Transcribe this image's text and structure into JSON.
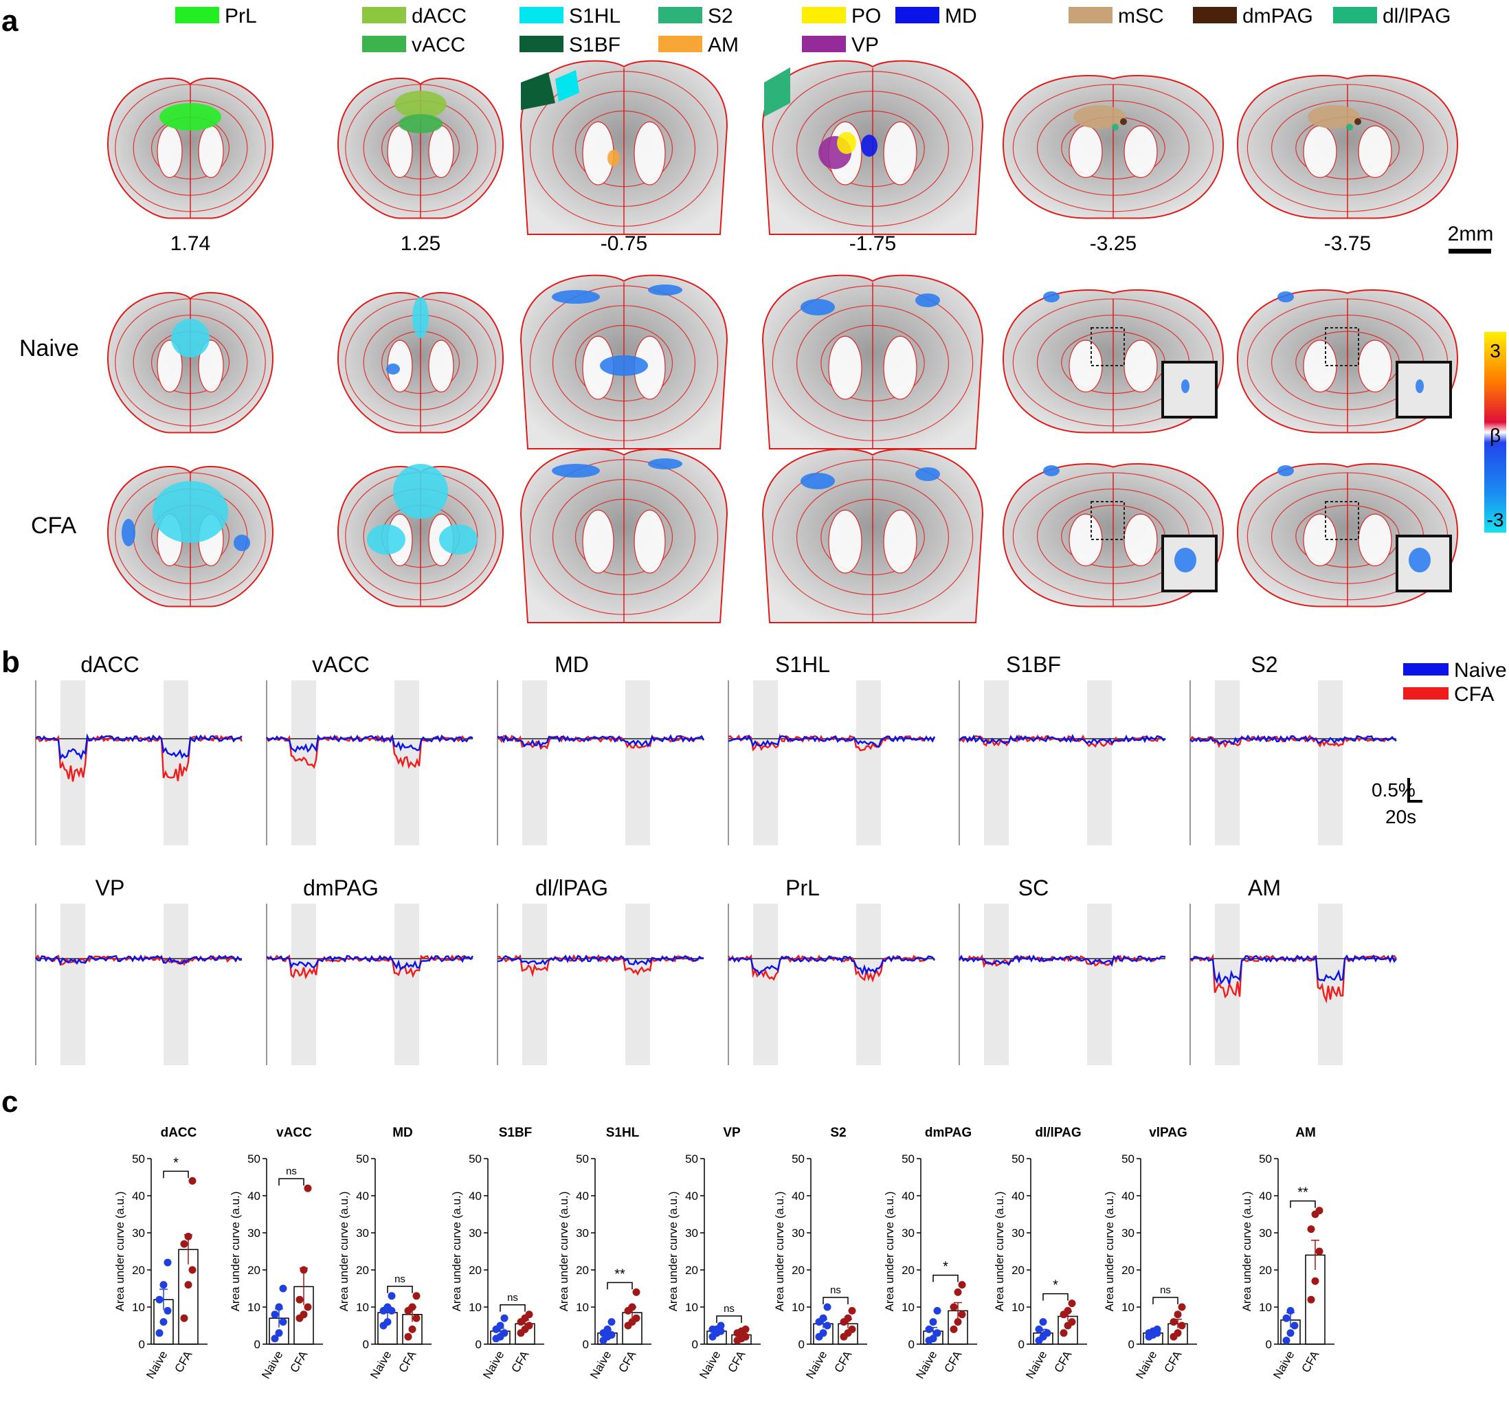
{
  "panel_a": {
    "letter": "a",
    "legend": [
      {
        "label": "PrL",
        "color": "#22ee22"
      },
      {
        "label": "dACC",
        "color": "#8dc63f"
      },
      {
        "label": "vACC",
        "color": "#3cb44b"
      },
      {
        "label": "S1HL",
        "color": "#00e5ee"
      },
      {
        "label": "S1BF",
        "color": "#0b5e35"
      },
      {
        "label": "S2",
        "color": "#2db37a"
      },
      {
        "label": "AM",
        "color": "#f7a535"
      },
      {
        "label": "PO",
        "color": "#ffee00"
      },
      {
        "label": "VP",
        "color": "#952b9b"
      },
      {
        "label": "MD",
        "color": "#0a14e8"
      },
      {
        "label": "mSC",
        "color": "#c8a378"
      },
      {
        "label": "dmPAG",
        "color": "#4a220c"
      },
      {
        "label": "dl/lPAG",
        "color": "#1fb57b"
      }
    ],
    "coordinates": [
      "1.74",
      "1.25",
      "-0.75",
      "-1.75",
      "-3.25",
      "-3.75"
    ],
    "scale_bar": "2mm",
    "rows": [
      "Naive",
      "CFA"
    ],
    "colorbar": {
      "top": "3",
      "mid": "β",
      "bottom": "-3"
    }
  },
  "panel_b": {
    "letter": "b",
    "legend": [
      {
        "label": "Naive",
        "color": "#0a14e8"
      },
      {
        "label": "CFA",
        "color": "#ee1c1c"
      }
    ],
    "scale_y": "0.5%",
    "scale_x": "20s",
    "row1": [
      "dACC",
      "vACC",
      "MD",
      "S1HL",
      "S1BF",
      "S2"
    ],
    "row2": [
      "VP",
      "dmPAG",
      "dl/lPAG",
      "PrL",
      "SC",
      "AM"
    ]
  },
  "panel_c": {
    "letter": "c",
    "chart_data": [
      {
        "type": "bar",
        "title": "dACC",
        "ylabel": "Area under curve (a.u.)",
        "categories": [
          "Naive",
          "CFA"
        ],
        "values": [
          12,
          25.5
        ],
        "sem": [
          2.8,
          4
        ],
        "sig": "*",
        "ylim": [
          0,
          50
        ],
        "points": {
          "Naive": [
            3,
            6,
            9,
            12,
            16,
            22
          ],
          "CFA": [
            7,
            16,
            20,
            27,
            29,
            44
          ]
        }
      },
      {
        "type": "bar",
        "title": "vACC",
        "ylabel": "Area under curve (a.u.)",
        "categories": [
          "Naive",
          "CFA"
        ],
        "values": [
          7,
          15.5
        ],
        "sem": [
          2.5,
          5
        ],
        "sig": "ns",
        "ylim": [
          0,
          50
        ],
        "points": {
          "Naive": [
            1.5,
            3,
            6,
            8,
            10,
            15
          ],
          "CFA": [
            7,
            8,
            10,
            12,
            20,
            42
          ]
        }
      },
      {
        "type": "bar",
        "title": "MD",
        "ylabel": "Area under curve (a.u.)",
        "categories": [
          "Naive",
          "CFA"
        ],
        "values": [
          8.5,
          8
        ],
        "sem": [
          1.5,
          2
        ],
        "sig": "ns",
        "ylim": [
          0,
          50
        ],
        "points": {
          "Naive": [
            5,
            6,
            9,
            9,
            10,
            13
          ],
          "CFA": [
            2,
            4,
            7,
            9,
            10,
            13
          ]
        }
      },
      {
        "type": "bar",
        "title": "S1BF",
        "ylabel": "Area under curve (a.u.)",
        "categories": [
          "Naive",
          "CFA"
        ],
        "values": [
          3.5,
          5.5
        ],
        "sem": [
          0.8,
          1
        ],
        "sig": "ns",
        "ylim": [
          0,
          50
        ],
        "points": {
          "Naive": [
            1.5,
            2,
            3,
            4,
            5,
            7
          ],
          "CFA": [
            3,
            4,
            5,
            6,
            7,
            8
          ]
        }
      },
      {
        "type": "bar",
        "title": "S1HL",
        "ylabel": "Area under curve (a.u.)",
        "categories": [
          "Naive",
          "CFA"
        ],
        "values": [
          3,
          8.5
        ],
        "sem": [
          0.8,
          1.5
        ],
        "sig": "**",
        "ylim": [
          0,
          50
        ],
        "points": {
          "Naive": [
            1,
            2,
            2.5,
            3,
            4,
            6
          ],
          "CFA": [
            5,
            6,
            7,
            9,
            10,
            14
          ]
        }
      },
      {
        "type": "bar",
        "title": "VP",
        "ylabel": "Area under curve (a.u.)",
        "categories": [
          "Naive",
          "CFA"
        ],
        "values": [
          3.5,
          2.5
        ],
        "sem": [
          0.6,
          0.5
        ],
        "sig": "ns",
        "ylim": [
          0,
          50
        ],
        "points": {
          "Naive": [
            2,
            3,
            3.5,
            4,
            4,
            5
          ],
          "CFA": [
            1,
            1.5,
            2,
            3,
            3.5,
            4
          ]
        }
      },
      {
        "type": "bar",
        "title": "S2",
        "ylabel": "Area under curve (a.u.)",
        "categories": [
          "Naive",
          "CFA"
        ],
        "values": [
          5.5,
          5.5
        ],
        "sem": [
          1.2,
          1.2
        ],
        "sig": "ns",
        "ylim": [
          0,
          50
        ],
        "points": {
          "Naive": [
            2,
            3,
            5,
            6,
            7,
            10
          ],
          "CFA": [
            2,
            3,
            4,
            6,
            7,
            9
          ]
        }
      },
      {
        "type": "bar",
        "title": "dmPAG",
        "ylabel": "Area under curve (a.u.)",
        "categories": [
          "Naive",
          "CFA"
        ],
        "values": [
          3.5,
          9
        ],
        "sem": [
          1,
          2.2
        ],
        "sig": "*",
        "ylim": [
          0,
          50
        ],
        "points": {
          "Naive": [
            1,
            1.5,
            3,
            4,
            6,
            9
          ],
          "CFA": [
            4,
            6,
            8,
            10,
            14,
            16
          ]
        }
      },
      {
        "type": "bar",
        "title": "dl/lPAG",
        "ylabel": "Area under curve (a.u.)",
        "categories": [
          "Naive",
          "CFA"
        ],
        "values": [
          3,
          7.5
        ],
        "sem": [
          1,
          1.3
        ],
        "sig": "*",
        "ylim": [
          0,
          50
        ],
        "points": {
          "Naive": [
            1,
            2,
            3,
            4,
            6
          ],
          "CFA": [
            3,
            5,
            6,
            8,
            9,
            11
          ]
        }
      },
      {
        "type": "bar",
        "title": "vlPAG",
        "ylabel": "Area under curve (a.u.)",
        "categories": [
          "Naive",
          "CFA"
        ],
        "values": [
          3,
          5.5
        ],
        "sem": [
          0.5,
          1.2
        ],
        "sig": "ns",
        "ylim": [
          0,
          50
        ],
        "points": {
          "Naive": [
            2,
            2.5,
            3,
            3,
            3.5,
            4
          ],
          "CFA": [
            2,
            3,
            5,
            6,
            8,
            10
          ]
        }
      },
      {
        "type": "bar",
        "title": "AM",
        "ylabel": "Area under curve (a.u.)",
        "categories": [
          "Naive",
          "CFA"
        ],
        "values": [
          6.5,
          24
        ],
        "sem": [
          2,
          4
        ],
        "sig": "**",
        "ylim": [
          0,
          50
        ],
        "points": {
          "Naive": [
            1,
            3,
            5,
            7,
            9
          ],
          "CFA": [
            12,
            17,
            25,
            31,
            35,
            36
          ]
        }
      }
    ]
  }
}
